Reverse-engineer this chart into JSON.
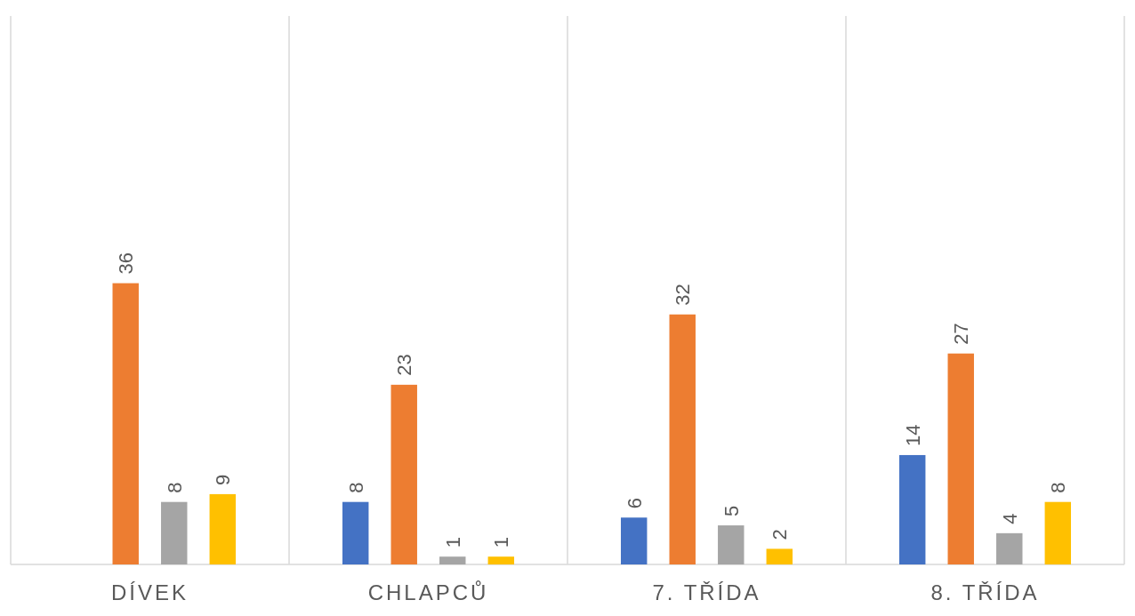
{
  "chart_data": {
    "type": "bar",
    "categories": [
      "DÍVEK",
      "CHLAPCŮ",
      "7. TŘÍDA",
      "8. TŘÍDA"
    ],
    "series": [
      {
        "color": "#4472c4",
        "values": [
          null,
          8,
          6,
          14
        ]
      },
      {
        "color": "#ed7d31",
        "values": [
          36,
          23,
          32,
          27
        ]
      },
      {
        "color": "#a5a5a5",
        "values": [
          8,
          1,
          5,
          4
        ]
      },
      {
        "color": "#ffc000",
        "values": [
          9,
          1,
          2,
          8
        ]
      }
    ],
    "data_labels": true,
    "grid": "x"
  }
}
